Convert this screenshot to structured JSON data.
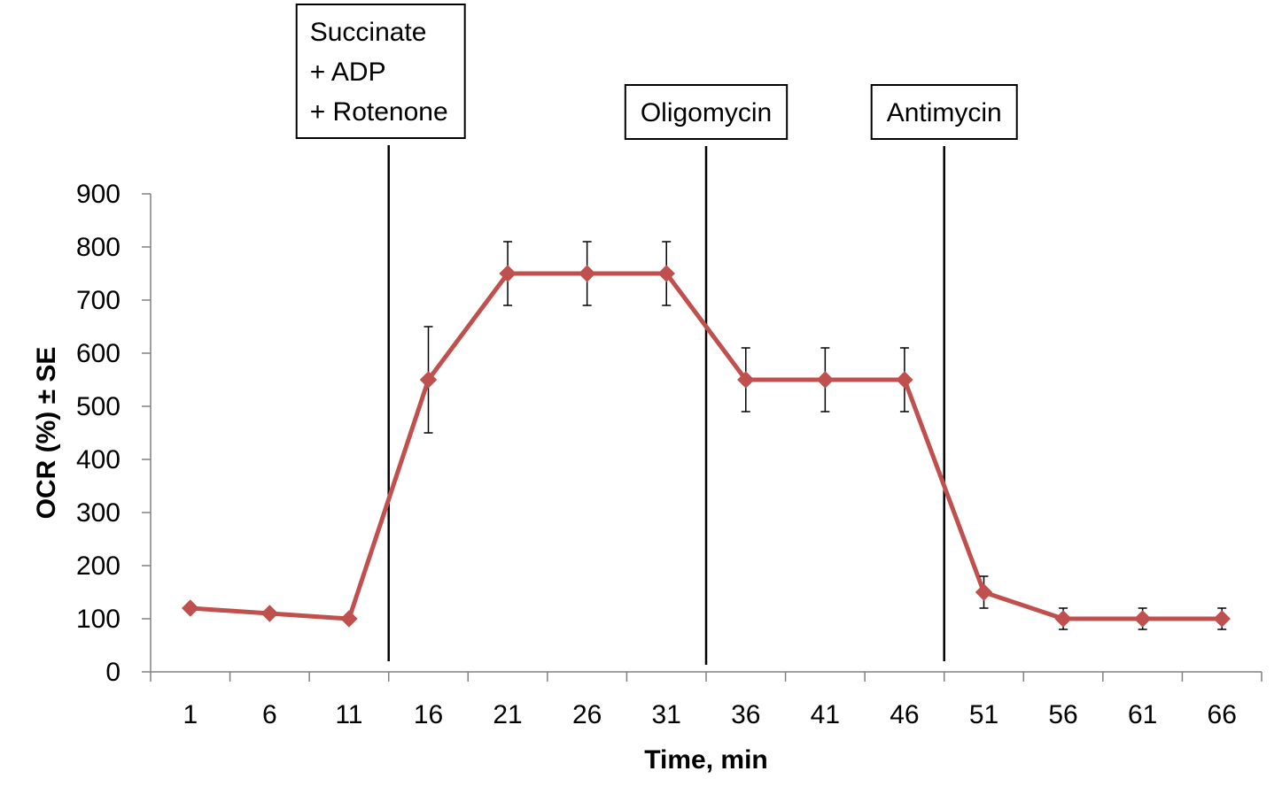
{
  "chart_data": {
    "type": "line",
    "title": "",
    "xlabel": "Time, min",
    "ylabel": "OCR (%) ± SE",
    "ylim": [
      0,
      900
    ],
    "yticks": [
      0,
      100,
      200,
      300,
      400,
      500,
      600,
      700,
      800,
      900
    ],
    "categories": [
      "1",
      "6",
      "11",
      "16",
      "21",
      "26",
      "31",
      "36",
      "41",
      "46",
      "51",
      "56",
      "61",
      "66"
    ],
    "grid": false,
    "legend": "none",
    "series": [
      {
        "name": "",
        "color": "#c0504d",
        "marker": "diamond",
        "values": [
          120,
          110,
          100,
          550,
          750,
          750,
          750,
          550,
          550,
          550,
          150,
          100,
          100,
          100
        ],
        "errors": [
          null,
          null,
          null,
          100,
          60,
          60,
          60,
          60,
          60,
          60,
          30,
          20,
          20,
          20
        ]
      }
    ],
    "annotations": [
      {
        "lines": [
          "Succinate",
          "+ ADP",
          "+ Rotenone"
        ],
        "at_x": 13.5
      },
      {
        "lines": [
          "Oligomycin"
        ],
        "at_x": 33.5
      },
      {
        "lines": [
          "Antimycin"
        ],
        "at_x": 48.5
      }
    ]
  }
}
